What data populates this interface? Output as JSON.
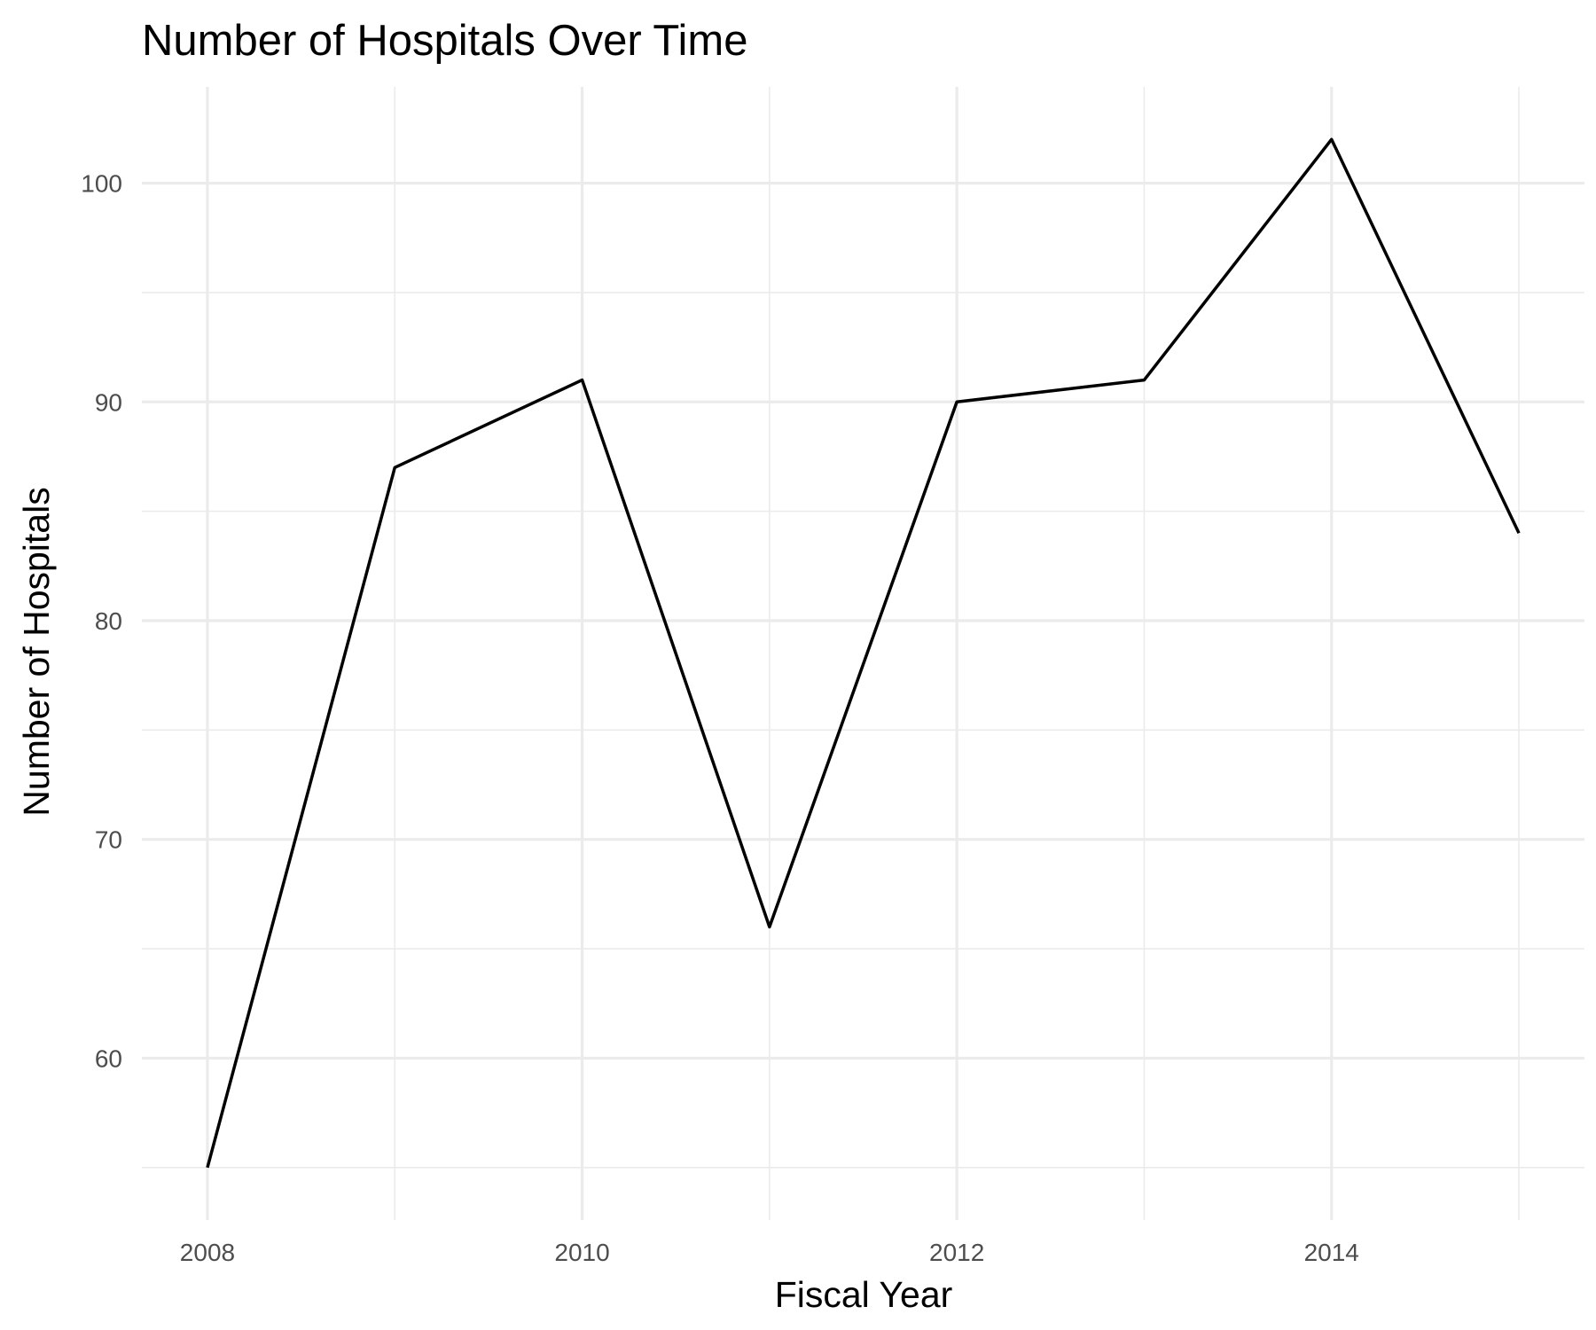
{
  "chart_data": {
    "type": "line",
    "title": "Number of Hospitals Over Time",
    "xlabel": "Fiscal Year",
    "ylabel": "Number of Hospitals",
    "x": [
      2008,
      2009,
      2010,
      2011,
      2012,
      2013,
      2014,
      2015
    ],
    "series": [
      {
        "values": [
          55,
          87,
          91,
          66,
          90,
          91,
          102,
          84
        ]
      }
    ],
    "xlim": [
      2007.65,
      2015.35
    ],
    "ylim": [
      52.6,
      104.4
    ],
    "x_ticks": [
      "2008",
      "2010",
      "2012",
      "2014"
    ],
    "y_ticks": [
      "60",
      "70",
      "80",
      "90",
      "100"
    ],
    "grid": true,
    "line_color": "#000000",
    "grid_color": "#ebebeb"
  }
}
